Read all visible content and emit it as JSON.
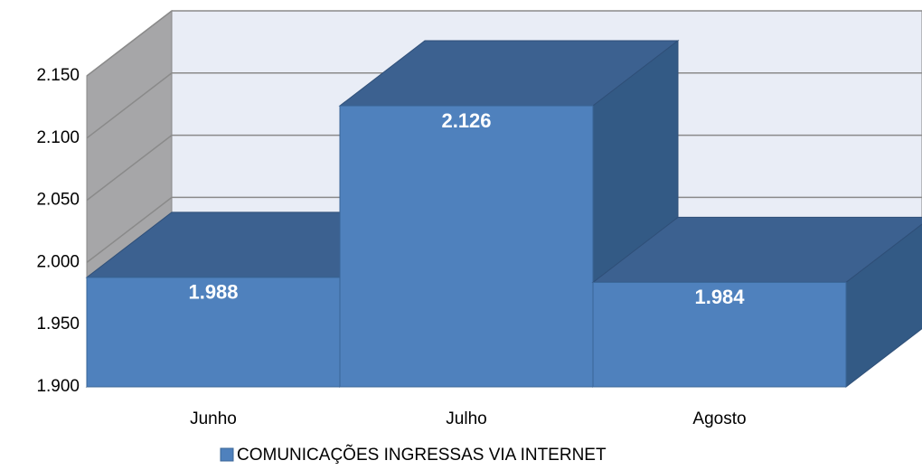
{
  "chart_data": {
    "type": "bar3d",
    "categories": [
      "Junho",
      "Julho",
      "Agosto"
    ],
    "series": [
      {
        "name": "COMUNICAÇÕES INGRESSAS VIA INTERNET",
        "color": "#4f81bd",
        "values": [
          1988,
          2126,
          1984
        ],
        "value_labels": [
          "1.988",
          "2.126",
          "1.984"
        ]
      }
    ],
    "ylim": [
      1900,
      2150
    ],
    "yticks": [
      {
        "value": 1900,
        "label": "1.900"
      },
      {
        "value": 1950,
        "label": "1.950"
      },
      {
        "value": 2000,
        "label": "2.000"
      },
      {
        "value": 2050,
        "label": "2.050"
      },
      {
        "value": 2100,
        "label": "2.100"
      },
      {
        "value": 2150,
        "label": "2.150"
      }
    ],
    "grid": true
  }
}
